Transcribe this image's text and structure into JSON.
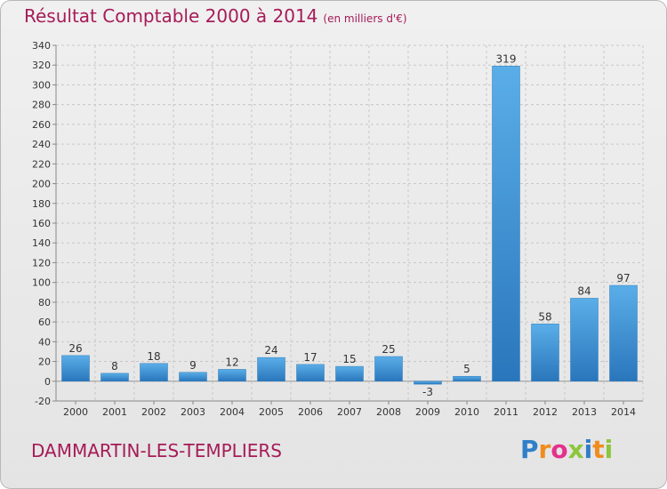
{
  "header": {
    "title": "Résultat Comptable 2000 à 2014",
    "unit": "(en milliers d'€)"
  },
  "footer": {
    "place": "DAMMARTIN-LES-TEMPLIERS"
  },
  "logo": {
    "letters": [
      "P",
      "r",
      "o",
      "x",
      "i",
      "t",
      "i"
    ],
    "colors": [
      "#2f7fc9",
      "#f08c1e",
      "#e5308c",
      "#8cc63e",
      "#2f7fc9",
      "#f08c1e",
      "#8cc63e"
    ]
  },
  "colors": {
    "bar": "#3f95d8",
    "bar_dark": "#2b77bd",
    "title": "#a61b58"
  },
  "chart_data": {
    "type": "bar",
    "title": "Résultat Comptable 2000 à 2014",
    "subtitle": "(en milliers d'€)",
    "categories": [
      "2000",
      "2001",
      "2002",
      "2003",
      "2004",
      "2005",
      "2006",
      "2007",
      "2008",
      "2009",
      "2010",
      "2011",
      "2012",
      "2013",
      "2014"
    ],
    "values": [
      26,
      8,
      18,
      9,
      12,
      24,
      17,
      15,
      25,
      -3,
      5,
      319,
      58,
      84,
      97
    ],
    "ylim": [
      -20,
      340
    ],
    "yticks": [
      -20,
      0,
      20,
      40,
      60,
      80,
      100,
      120,
      140,
      160,
      180,
      200,
      220,
      240,
      260,
      280,
      300,
      320,
      340
    ],
    "grid": true,
    "xlabel": "",
    "ylabel": ""
  }
}
